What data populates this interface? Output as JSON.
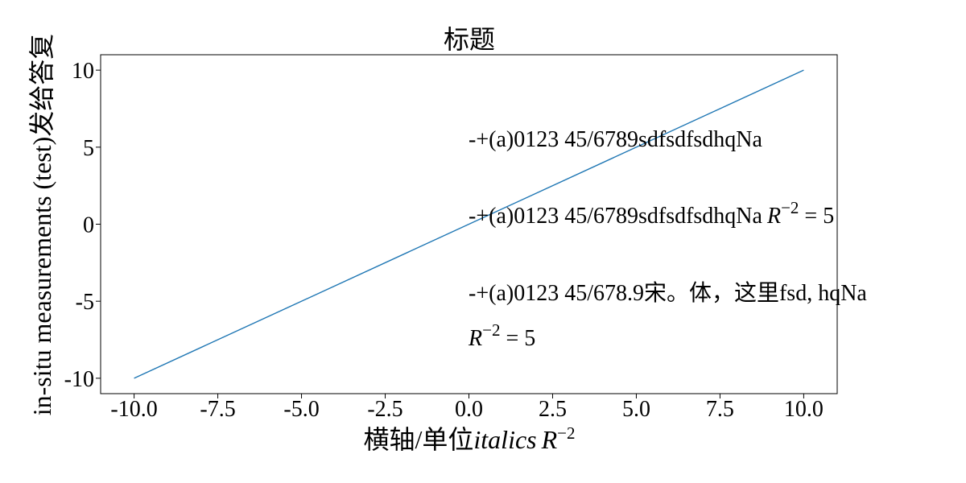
{
  "chart_data": {
    "type": "line",
    "title": "标题",
    "xlabel": {
      "text": "横轴/单位",
      "italic": "italics",
      "math_base": "R",
      "math_sup": "−2"
    },
    "ylabel": "in-situ measurements (test)发给答复",
    "xlim": [
      -11,
      11
    ],
    "ylim": [
      -11,
      11
    ],
    "xticks": [
      -10,
      -7.5,
      -5,
      -2.5,
      0,
      2.5,
      5,
      7.5,
      10
    ],
    "xtick_labels": [
      "-10.0",
      "-7.5",
      "-5.0",
      "-2.5",
      "0.0",
      "2.5",
      "5.0",
      "7.5",
      "10.0"
    ],
    "yticks": [
      -10,
      -5,
      0,
      5,
      10
    ],
    "ytick_labels": [
      "-10",
      "-5",
      "0",
      "5",
      "10"
    ],
    "grid": false,
    "series": [
      {
        "color": "#1f77b4",
        "x": [
          -10,
          10
        ],
        "y": [
          -10,
          10
        ]
      }
    ],
    "annotations": [
      {
        "id": "annotation-1",
        "x": 0,
        "y": 5,
        "text": "-+(a)0123 45/6789sdfsdfsdhqNa"
      },
      {
        "id": "annotation-2",
        "x": 0,
        "y": 0,
        "text": "-+(a)0123 45/6789sdfsdfsdhqNa",
        "math_base": "R",
        "math_sup": "−2",
        "math_rest": " = 5"
      },
      {
        "id": "annotation-3",
        "x": 0,
        "y": -5,
        "text": "-+(a)0123 45/678.9宋。体，这里fsd, hqNa",
        "line2_math_base": "R",
        "line2_math_sup": "−2",
        "line2_math_rest": " = 5"
      }
    ]
  }
}
